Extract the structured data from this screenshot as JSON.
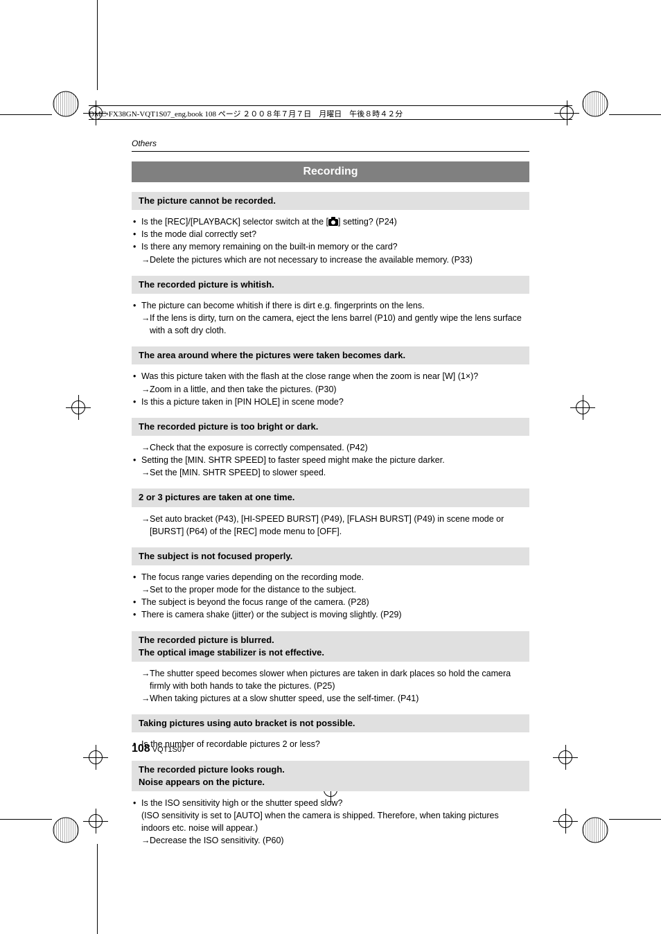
{
  "header_text": "DMC-FX38GN-VQT1S07_eng.book  108 ページ  ２００８年７月７日　月曜日　午後８時４２分",
  "section_label": "Others",
  "title": "Recording",
  "issues": [
    {
      "heading": "The picture cannot be recorded.",
      "lines": [
        {
          "type": "bullet",
          "text_pre": "Is the [REC]/[PLAYBACK] selector switch at the [",
          "icon": true,
          "text_post": "] setting? (P24)"
        },
        {
          "type": "bullet",
          "text": "Is the mode dial correctly set?"
        },
        {
          "type": "bullet",
          "text": "Is there any memory remaining on the built-in memory or the card?"
        },
        {
          "type": "arrow",
          "text": "Delete the pictures which are not necessary to increase the available memory. (P33)"
        }
      ]
    },
    {
      "heading": "The recorded picture is whitish.",
      "lines": [
        {
          "type": "bullet",
          "text": "The picture can become whitish if there is dirt e.g. fingerprints on the lens."
        },
        {
          "type": "arrow",
          "text": "If the lens is dirty, turn on the camera, eject the lens barrel (P10) and gently wipe the lens surface with a soft dry cloth."
        }
      ]
    },
    {
      "heading": "The area around where the pictures were taken becomes dark.",
      "lines": [
        {
          "type": "bullet",
          "text": "Was this picture taken with the flash at the close range when the zoom is near [W] (1×)?"
        },
        {
          "type": "arrow",
          "text": "Zoom in a little, and then take the pictures. (P30)"
        },
        {
          "type": "bullet",
          "text": "Is this a picture taken in [PIN HOLE] in scene mode?"
        }
      ]
    },
    {
      "heading": "The recorded picture is too bright or dark.",
      "lines": [
        {
          "type": "arrow",
          "text": "Check that the exposure is correctly compensated. (P42)"
        },
        {
          "type": "bullet",
          "text": "Setting the [MIN. SHTR SPEED] to faster speed might make the picture darker."
        },
        {
          "type": "arrow",
          "text": "Set the [MIN. SHTR SPEED] to slower speed."
        }
      ]
    },
    {
      "heading": "2 or 3 pictures are taken at one time.",
      "lines": [
        {
          "type": "arrow",
          "text": "Set auto bracket (P43), [HI-SPEED BURST] (P49), [FLASH BURST] (P49) in scene mode or [BURST] (P64) of the [REC] mode menu to [OFF]."
        }
      ]
    },
    {
      "heading": "The subject is not focused properly.",
      "lines": [
        {
          "type": "bullet",
          "text": "The focus range varies depending on the recording mode."
        },
        {
          "type": "arrow",
          "text": "Set to the proper mode for the distance to the subject."
        },
        {
          "type": "bullet",
          "text": "The subject is beyond the focus range of the camera. (P28)"
        },
        {
          "type": "bullet",
          "text": "There is camera shake (jitter) or the subject is moving slightly. (P29)"
        }
      ]
    },
    {
      "heading": "The recorded picture is blurred.\nThe optical image stabilizer is not effective.",
      "lines": [
        {
          "type": "arrow",
          "text": "The shutter speed becomes slower when pictures are taken in dark places so hold the camera firmly with both hands to take the pictures. (P25)"
        },
        {
          "type": "arrow",
          "text": "When taking pictures at a slow shutter speed, use the self-timer. (P41)"
        }
      ]
    },
    {
      "heading": "Taking pictures using auto bracket is not possible.",
      "lines": [
        {
          "type": "bullet",
          "text": "Is the number of recordable pictures 2 or less?"
        }
      ]
    },
    {
      "heading": "The recorded picture looks rough.\nNoise appears on the picture.",
      "lines": [
        {
          "type": "bullet",
          "text": "Is the ISO sensitivity high or the shutter speed slow?"
        },
        {
          "type": "plain",
          "text": "(ISO sensitivity is set to [AUTO] when the camera is shipped. Therefore, when taking pictures indoors etc. noise will appear.)"
        },
        {
          "type": "arrow",
          "text": "Decrease the ISO sensitivity. (P60)"
        }
      ]
    }
  ],
  "page_number": "108",
  "doc_code": "VQT1S07"
}
